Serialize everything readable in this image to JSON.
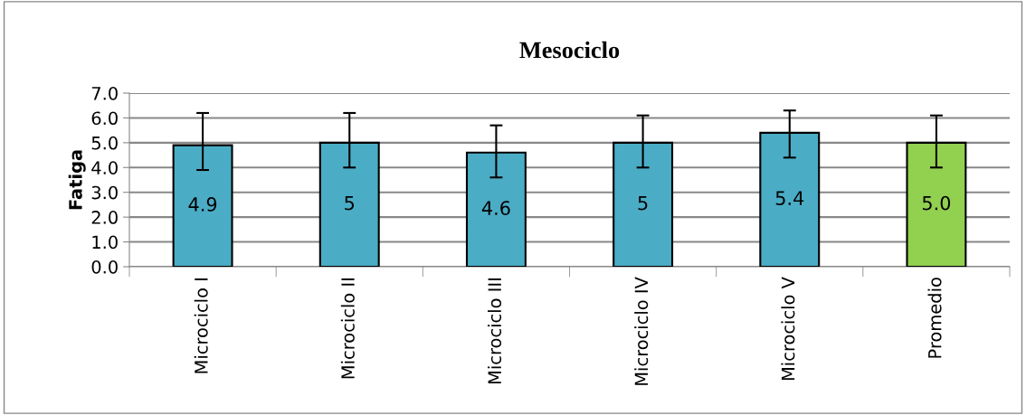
{
  "chart_data": {
    "type": "bar",
    "title": "Mesociclo",
    "ylabel": "Fatiga",
    "categories": [
      "Microciclo I",
      "Microciclo II",
      "Microciclo III",
      "Microciclo IV",
      "Microciclo V",
      "Promedio"
    ],
    "values": [
      4.9,
      5.0,
      4.6,
      5.0,
      5.4,
      5.0
    ],
    "colors": [
      "#4bacc6",
      "#4bacc6",
      "#4bacc6",
      "#4bacc6",
      "#4bacc6",
      "#92d050"
    ],
    "errors": [
      [
        3.9,
        6.2
      ],
      [
        4.0,
        6.2
      ],
      [
        3.6,
        5.7
      ],
      [
        4.0,
        6.1
      ],
      [
        4.4,
        6.3
      ],
      [
        4.0,
        6.1
      ]
    ],
    "value_labels": [
      "4.9",
      "5",
      "4.6",
      "5",
      "5.4",
      "5.0"
    ],
    "ylim": [
      0,
      7
    ],
    "yticks": [
      {
        "value": 0,
        "label": "0.0"
      },
      {
        "value": 1,
        "label": "1.0"
      },
      {
        "value": 2,
        "label": "2.0"
      },
      {
        "value": 3,
        "label": "3.0"
      },
      {
        "value": 4,
        "label": "4.0"
      },
      {
        "value": 5,
        "label": "5.0"
      },
      {
        "value": 6,
        "label": "6.0"
      },
      {
        "value": 7,
        "label": "7.0"
      }
    ],
    "grid": "y"
  }
}
